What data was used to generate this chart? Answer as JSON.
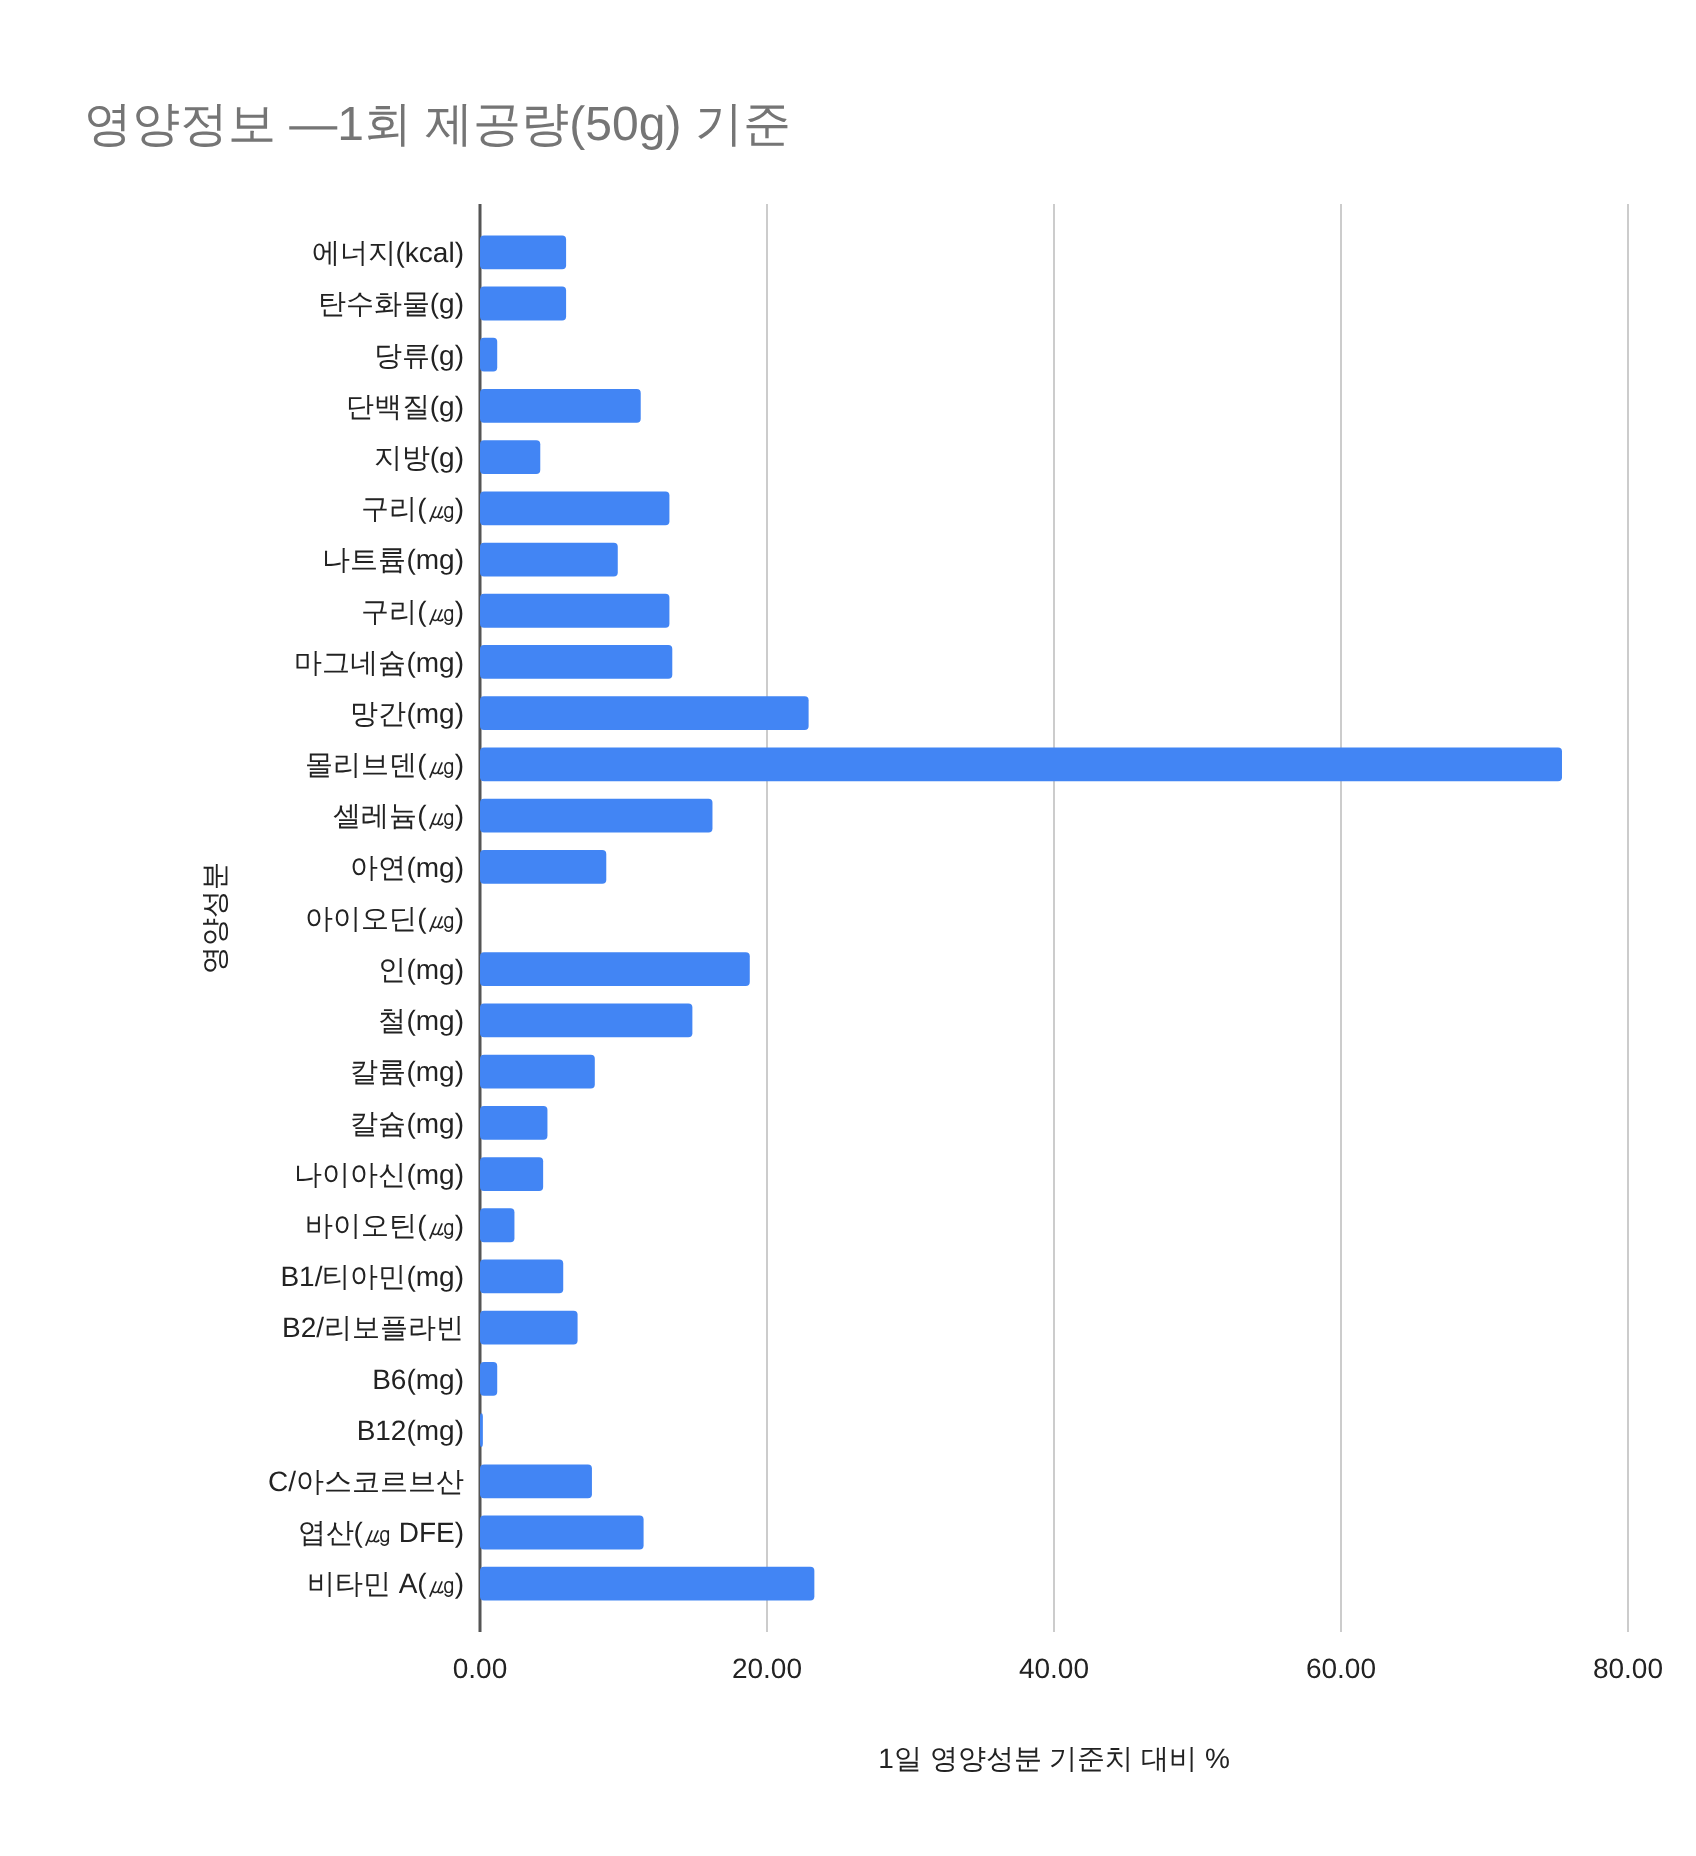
{
  "chart_data": {
    "type": "bar",
    "orientation": "horizontal",
    "title": "영양정보 —1회 제공량(50g) 기준",
    "xlabel": "1일 영양성분 기준치 대비 %",
    "ylabel": "영양성분",
    "categories": [
      "에너지(kcal)",
      "탄수화물(g)",
      "당류(g)",
      "단백질(g)",
      "지방(g)",
      "구리(㎍)",
      "나트륨(mg)",
      "구리(㎍)",
      "마그네슘(mg)",
      "망간(mg)",
      "몰리브덴(㎍)",
      "셀레늄(㎍)",
      "아연(mg)",
      "아이오딘(㎍)",
      "인(mg)",
      "철(mg)",
      "칼륨(mg)",
      "칼슘(mg)",
      "나이아신(mg)",
      "바이오틴(㎍)",
      "B1/티아민(mg)",
      "B2/리보플라빈",
      "B6(mg)",
      "B12(mg)",
      "C/아스코르브산",
      "엽산(㎍ DFE)",
      "비타민 A(㎍)"
    ],
    "values": [
      6.0,
      6.0,
      1.2,
      11.2,
      4.2,
      13.2,
      9.6,
      13.2,
      13.4,
      22.9,
      75.4,
      16.2,
      8.8,
      0,
      18.8,
      14.8,
      8.0,
      4.7,
      4.4,
      2.4,
      5.8,
      6.8,
      1.2,
      0.2,
      7.8,
      11.4,
      23.3
    ],
    "color": "#4285f4",
    "xlim": [
      0,
      80
    ],
    "xticks": [
      {
        "value": 0,
        "label": "0.00"
      },
      {
        "value": 20,
        "label": "20.00"
      },
      {
        "value": 40,
        "label": "40.00"
      },
      {
        "value": 60,
        "label": "60.00"
      },
      {
        "value": 80,
        "label": "80.00"
      }
    ],
    "grid": "x"
  }
}
